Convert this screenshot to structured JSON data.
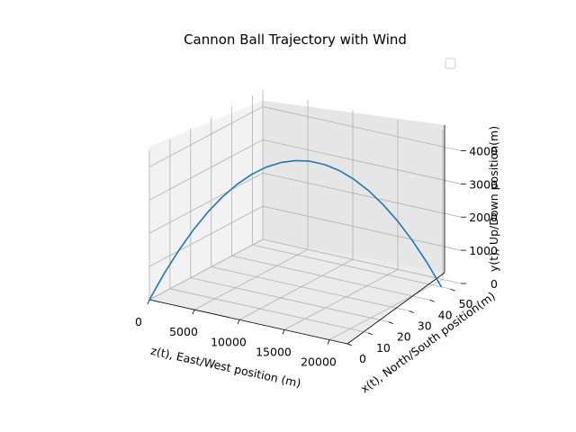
{
  "chart_data": {
    "type": "line3d",
    "title": "Cannon Ball Trajectory with Wind",
    "xlabel": "z(t), East/West position (m)",
    "ylabel": "x(t), North/South position(m)",
    "zlabel": "y(t), Up/Down position(m)",
    "xlim": [
      0,
      22000
    ],
    "ylim": [
      0,
      55
    ],
    "zlim": [
      0,
      4500
    ],
    "xticks": [
      0,
      5000,
      10000,
      15000,
      20000
    ],
    "yticks": [
      0,
      10,
      20,
      30,
      40,
      50
    ],
    "zticks": [
      0,
      1000,
      2000,
      3000,
      4000
    ],
    "grid": true,
    "legend": "top-right, empty",
    "series": [
      {
        "color": "#1f77b4",
        "x": [
          0,
          1050,
          2100,
          3150,
          4200,
          5250,
          6300,
          7350,
          8400,
          9450,
          10500,
          11550,
          12600,
          13650,
          14700,
          15750,
          16800,
          17850,
          18900,
          19950,
          21000
        ],
        "y": [
          0,
          2.5,
          5,
          7.5,
          10,
          12.5,
          15,
          17.5,
          20,
          22.5,
          25,
          27.5,
          30,
          32.5,
          35,
          37.5,
          40,
          42.5,
          45,
          47.5,
          50
        ],
        "z": [
          0,
          760,
          1440,
          2040,
          2560,
          3000,
          3360,
          3640,
          3840,
          3960,
          4000,
          3960,
          3840,
          3640,
          3360,
          3000,
          2560,
          2040,
          1440,
          760,
          0
        ]
      }
    ]
  }
}
